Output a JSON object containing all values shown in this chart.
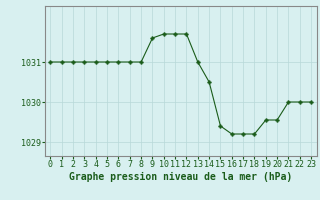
{
  "x": [
    0,
    1,
    2,
    3,
    4,
    5,
    6,
    7,
    8,
    9,
    10,
    11,
    12,
    13,
    14,
    15,
    16,
    17,
    18,
    19,
    20,
    21,
    22,
    23
  ],
  "y": [
    1031.0,
    1031.0,
    1031.0,
    1031.0,
    1031.0,
    1031.0,
    1031.0,
    1031.0,
    1031.0,
    1031.6,
    1031.7,
    1031.7,
    1031.7,
    1031.0,
    1030.5,
    1029.4,
    1029.2,
    1029.2,
    1029.2,
    1029.55,
    1029.55,
    1030.0,
    1030.0,
    1030.0
  ],
  "line_color": "#1a5c1a",
  "marker": "+",
  "marker_size": 4,
  "bg_color": "#d8f0f0",
  "grid_color": "#b8d8d8",
  "xlabel": "Graphe pression niveau de la mer (hPa)",
  "xlabel_fontsize": 7,
  "xlabel_color": "#1a5c1a",
  "tick_color": "#1a5c1a",
  "tick_fontsize": 6,
  "ylim": [
    1028.65,
    1032.4
  ],
  "xlim": [
    -0.5,
    23.5
  ],
  "yticks": [
    1029,
    1030,
    1031
  ],
  "xticks": [
    0,
    1,
    2,
    3,
    4,
    5,
    6,
    7,
    8,
    9,
    10,
    11,
    12,
    13,
    14,
    15,
    16,
    17,
    18,
    19,
    20,
    21,
    22,
    23
  ]
}
